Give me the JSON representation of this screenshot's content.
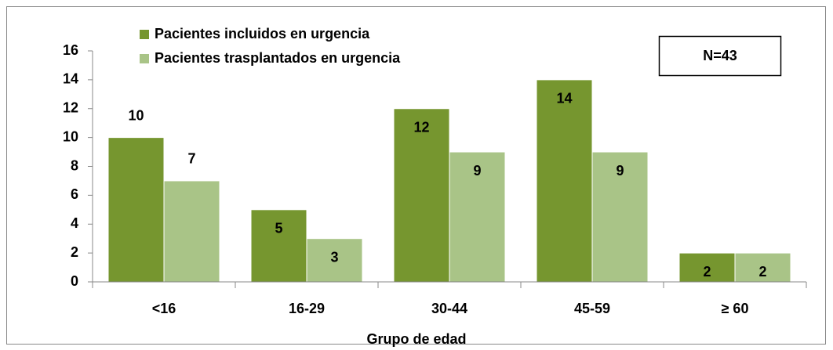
{
  "chart_data": {
    "type": "bar",
    "categories": [
      "<16",
      "16-29",
      "30-44",
      "45-59",
      "≥ 60"
    ],
    "series": [
      {
        "name": "Pacientes incluidos en urgencia",
        "color": "#76962f",
        "values": [
          10,
          5,
          12,
          14,
          2
        ]
      },
      {
        "name": "Pacientes trasplantados en urgencia",
        "color": "#a9c487",
        "values": [
          7,
          3,
          9,
          9,
          2
        ]
      }
    ],
    "xlabel": "Grupo de edad",
    "annotation": "N=43",
    "ylim": [
      0,
      16
    ],
    "yticks": [
      0,
      2,
      4,
      6,
      8,
      10,
      12,
      14,
      16
    ]
  }
}
